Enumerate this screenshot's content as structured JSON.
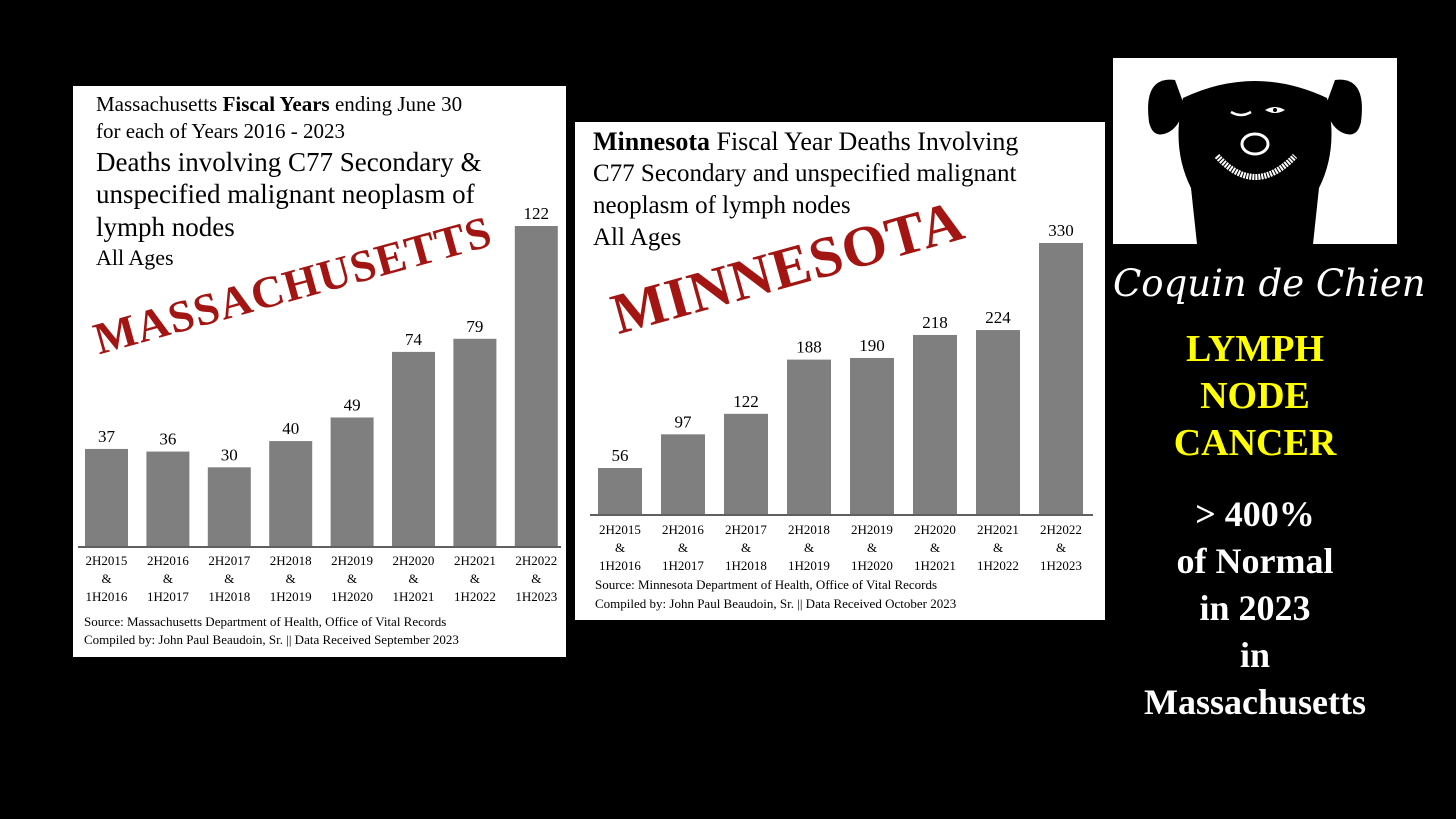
{
  "charts": {
    "massachusetts": {
      "title_line1_pre": "Massachusetts ",
      "title_line1_bold": "Fiscal Years",
      "title_line1_post": " ending June 30",
      "title_line2": "for each of Years 2016 - 2023",
      "subtitle_line1": "Deaths involving C77 Secondary &",
      "subtitle_line2": "unspecified malignant neoplasm of",
      "subtitle_line3": "lymph nodes",
      "ages": "All Ages",
      "stamp": "MASSACHUSETTS",
      "source": "Source:  Massachusetts Department of Health, Office of Vital Records",
      "compiled": "Compiled by:  John Paul Beaudoin, Sr. || Data Received September 2023"
    },
    "minnesota": {
      "title_line1_bold": "Minnesota",
      "title_line1_post": " Fiscal Year Deaths Involving",
      "title_line2": "C77 Secondary and unspecified malignant",
      "title_line3": "neoplasm of lymph nodes",
      "ages": "All Ages",
      "stamp": "MINNESOTA",
      "source": "Source:  Minnesota Department of Health, Office of Vital Records",
      "compiled": "Compiled by:  John Paul Beaudoin, Sr. || Data Received October 2023"
    }
  },
  "chart_data": [
    {
      "type": "bar",
      "categories": [
        [
          "2H2015",
          "&",
          "1H2016"
        ],
        [
          "2H2016",
          "&",
          "1H2017"
        ],
        [
          "2H2017",
          "&",
          "1H2018"
        ],
        [
          "2H2018",
          "&",
          "1H2019"
        ],
        [
          "2H2019",
          "&",
          "1H2020"
        ],
        [
          "2H2020",
          "&",
          "1H2021"
        ],
        [
          "2H2021",
          "&",
          "1H2022"
        ],
        [
          "2H2022",
          "&",
          "1H2023"
        ]
      ],
      "values": [
        37,
        36,
        30,
        40,
        49,
        74,
        79,
        122
      ],
      "data_labels": [
        "37",
        "36",
        "30",
        "40",
        "49",
        "74",
        "79",
        "122"
      ],
      "ylim": [
        0,
        122
      ],
      "grid": false,
      "bar_color": "#7f7f7f"
    },
    {
      "type": "bar",
      "categories": [
        [
          "2H2015",
          "&",
          "1H2016"
        ],
        [
          "2H2016",
          "&",
          "1H2017"
        ],
        [
          "2H2017",
          "&",
          "1H2018"
        ],
        [
          "2H2018",
          "&",
          "1H2019"
        ],
        [
          "2H2019",
          "&",
          "1H2020"
        ],
        [
          "2H2020",
          "&",
          "1H2021"
        ],
        [
          "2H2021",
          "&",
          "1H2022"
        ],
        [
          "2H2022",
          "&",
          "1H2023"
        ]
      ],
      "values": [
        56,
        97,
        122,
        188,
        190,
        218,
        224,
        330
      ],
      "data_labels": [
        "56",
        "97",
        "122",
        "188",
        "190",
        "218",
        "224",
        "330"
      ],
      "ylim": [
        0,
        330
      ],
      "grid": false,
      "bar_color": "#7f7f7f"
    }
  ],
  "sidebar": {
    "brand": "Coquin de Chien",
    "yellow_line1": "LYMPH",
    "yellow_line2": "NODE",
    "yellow_line3": "CANCER",
    "white_line1": "> 400%",
    "white_line2": "of Normal",
    "white_line3": "in 2023",
    "white_line4": "in",
    "white_line5": "Massachusetts"
  },
  "colors": {
    "stamp": "#a21512",
    "highlight": "#ffff00",
    "background": "#000000"
  },
  "logo": {
    "icon": "dog-face-icon"
  }
}
